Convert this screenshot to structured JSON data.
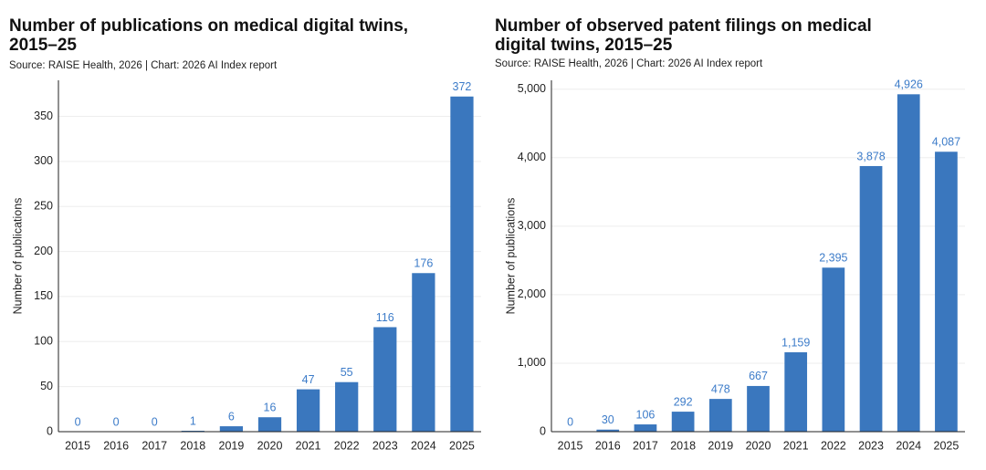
{
  "chart_data": [
    {
      "type": "bar",
      "title": "Number of publications on medical digital twins, 2015–25",
      "subtitle": "Source: RAISE Health, 2026 | Chart: 2026 AI Index report",
      "y_label": "Number of publications",
      "categories": [
        "2015",
        "2016",
        "2017",
        "2018",
        "2019",
        "2020",
        "2021",
        "2022",
        "2023",
        "2024",
        "2025"
      ],
      "values": [
        0,
        0,
        0,
        1,
        6,
        16,
        47,
        55,
        116,
        176,
        372
      ],
      "color": "#3a77be",
      "ylim": [
        0,
        390
      ],
      "yticks": [
        0,
        50,
        100,
        150,
        200,
        250,
        300,
        350
      ],
      "grid": true
    },
    {
      "type": "bar",
      "title": "Number of observed patent filings on medical digital twins, 2015–25",
      "subtitle": "Source: RAISE Health, 2026 | Chart: 2026 AI Index report",
      "y_label": "Number of publications",
      "categories": [
        "2015",
        "2016",
        "2017",
        "2018",
        "2019",
        "2020",
        "2021",
        "2022",
        "2023",
        "2024",
        "2025"
      ],
      "values": [
        0,
        30,
        106,
        292,
        478,
        667,
        1159,
        2395,
        3878,
        4926,
        4087
      ],
      "value_labels": [
        "0",
        "30",
        "106",
        "292",
        "478",
        "667",
        "1,159",
        "2,395",
        "3,878",
        "4,926",
        "4,087"
      ],
      "color": "#3a77be",
      "ylim": [
        0,
        5130
      ],
      "yticks": [
        0,
        {
          "value": 1000,
          "label": "1,000"
        },
        {
          "value": 2000,
          "label": "2,000"
        },
        {
          "value": 3000,
          "label": "3,000"
        },
        {
          "value": 4000,
          "label": "4,000"
        },
        {
          "value": 5000,
          "label": "5,000"
        }
      ],
      "grid": true
    }
  ]
}
